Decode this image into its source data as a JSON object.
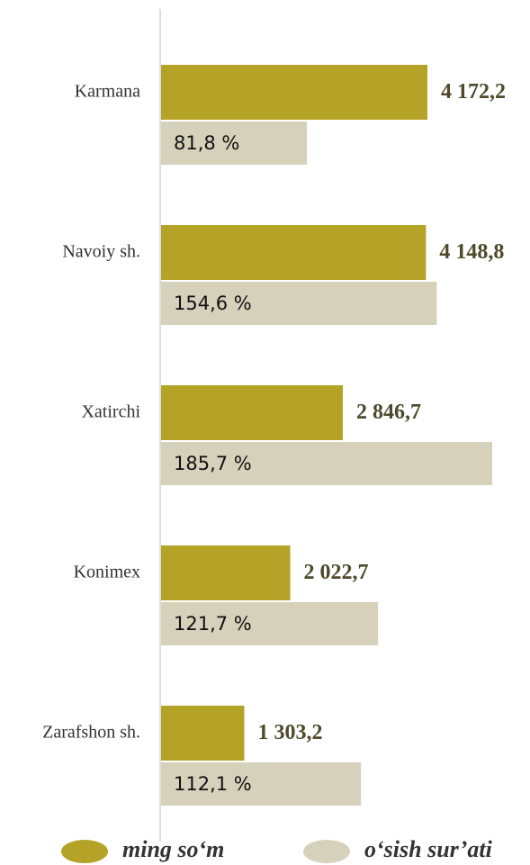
{
  "chart_data": {
    "type": "bar",
    "orientation": "horizontal",
    "categories": [
      "Karmana",
      "Navoiy sh.",
      "Xatirchi",
      "Konimex",
      "Zarafshon sh."
    ],
    "series": [
      {
        "name": "ming so‘m",
        "color": "#b4a327",
        "values": [
          4172.2,
          4148.8,
          2846.7,
          2022.7,
          1303.2
        ],
        "value_labels": [
          "4 172,2",
          "4 148,8",
          "2 846,7",
          "2 022,7",
          "1 303,2"
        ]
      },
      {
        "name": "o‘sish sur’ati",
        "color": "#d6d1bb",
        "values": [
          81.8,
          154.6,
          185.7,
          121.7,
          112.1
        ],
        "value_labels": [
          "81,8 %",
          "154,6 %",
          "185,7 %",
          "121,7 %",
          "112,1 %"
        ]
      }
    ]
  }
}
